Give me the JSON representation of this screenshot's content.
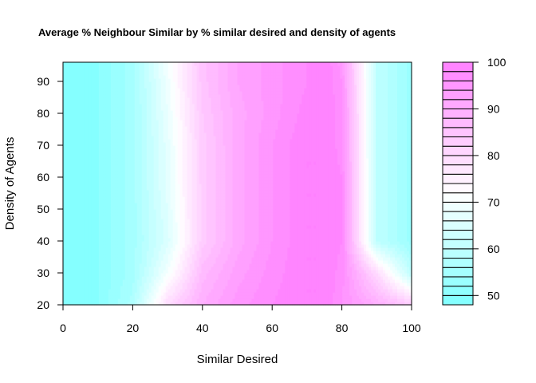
{
  "chart_data": {
    "type": "heatmap",
    "title": "Average % Neighbour Similar by % similar desired and density of agents",
    "xlabel": "Similar Desired",
    "ylabel": "Density of Agents",
    "xlim": [
      0,
      100
    ],
    "ylim": [
      20,
      96
    ],
    "x_ticks": [
      "0",
      "20",
      "40",
      "60",
      "80",
      "100"
    ],
    "y_ticks": [
      "20",
      "30",
      "40",
      "50",
      "60",
      "70",
      "80",
      "90"
    ],
    "x": [
      0,
      10,
      20,
      30,
      40,
      50,
      60,
      70,
      75,
      80,
      90,
      100
    ],
    "y": [
      20,
      30,
      40,
      50,
      60,
      70,
      80,
      90,
      96
    ],
    "z": [
      [
        48,
        50,
        57,
        80,
        90,
        95,
        98,
        100,
        100,
        96,
        90,
        84
      ],
      [
        48,
        50,
        55,
        70,
        87,
        93,
        97,
        100,
        100,
        97,
        80,
        60
      ],
      [
        48,
        50,
        55,
        65,
        83,
        91,
        96,
        100,
        100,
        98,
        60,
        53
      ],
      [
        48,
        50,
        55,
        66,
        83,
        91,
        96,
        100,
        100,
        98,
        60,
        53
      ],
      [
        48,
        50,
        55,
        67,
        83,
        91,
        96,
        100,
        100,
        98,
        60,
        53
      ],
      [
        48,
        50,
        55,
        67,
        83,
        91,
        96,
        100,
        100,
        97,
        60,
        53
      ],
      [
        48,
        50,
        55,
        68,
        84,
        91,
        95,
        99,
        100,
        97,
        60,
        53
      ],
      [
        48,
        50,
        55,
        69,
        85,
        92,
        95,
        98,
        100,
        96,
        60,
        53
      ],
      [
        48,
        50,
        55,
        70,
        85,
        92,
        95,
        98,
        100,
        95,
        60,
        53
      ]
    ],
    "levels": [
      48,
      50,
      52,
      54,
      56,
      58,
      60,
      62,
      64,
      66,
      68,
      70,
      72,
      74,
      76,
      78,
      80,
      82,
      84,
      86,
      88,
      90,
      92,
      94,
      96,
      98,
      100
    ],
    "colorbar_ticks": [
      "50",
      "60",
      "70",
      "80",
      "90",
      "100"
    ],
    "colors": {
      "low": "#80ffff",
      "mid": "#ffffff",
      "high": "#ff80ff",
      "mid_value": 72
    },
    "grid": false,
    "legend": "right colorbar"
  }
}
